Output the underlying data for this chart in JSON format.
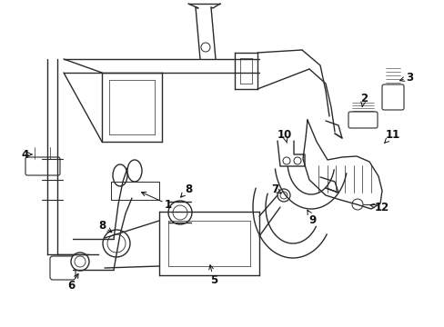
{
  "bg_color": "#ffffff",
  "line_color": "#2a2a2a",
  "label_color": "#111111",
  "figsize": [
    4.89,
    3.6
  ],
  "dpi": 100,
  "labels": {
    "1": [
      185,
      225,
      152,
      210
    ],
    "2": [
      400,
      108,
      398,
      118
    ],
    "3": [
      450,
      85,
      436,
      90
    ],
    "4": [
      28,
      170,
      36,
      170
    ],
    "5": [
      235,
      308,
      230,
      288
    ],
    "6": [
      78,
      315,
      88,
      298
    ],
    "7": [
      302,
      208,
      312,
      215
    ],
    "8a": [
      207,
      208,
      196,
      220
    ],
    "8b": [
      112,
      248,
      126,
      258
    ],
    "9": [
      344,
      242,
      336,
      228
    ],
    "10": [
      313,
      148,
      316,
      160
    ],
    "11": [
      432,
      148,
      420,
      160
    ],
    "12": [
      420,
      228,
      403,
      225
    ]
  }
}
